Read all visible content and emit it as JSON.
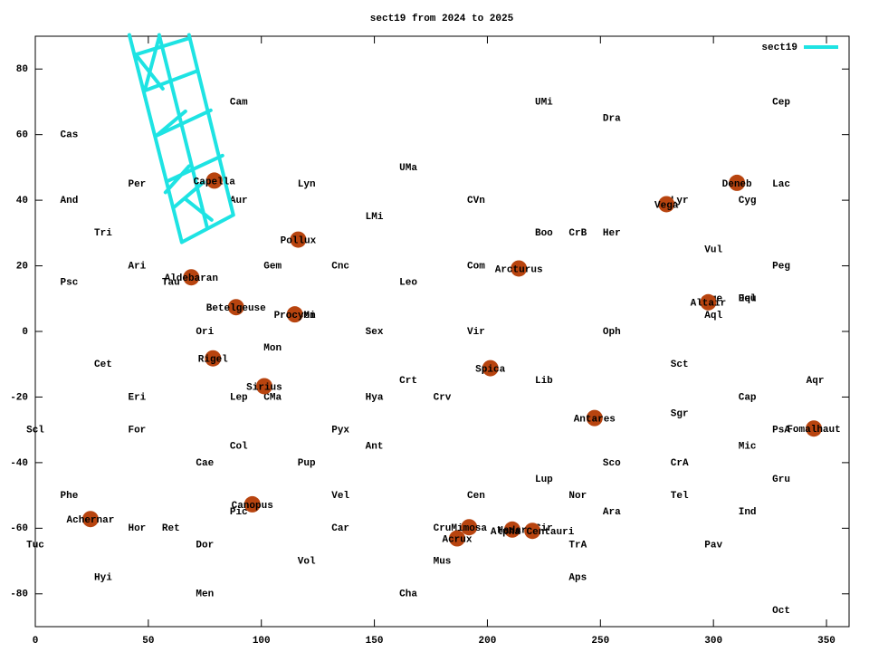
{
  "chart_data": {
    "type": "scatter",
    "title": "sect19 from 2024 to 2025",
    "xlim": [
      0,
      360
    ],
    "ylim": [
      -90,
      90
    ],
    "xticks": [
      0,
      50,
      100,
      150,
      200,
      250,
      300,
      350
    ],
    "yticks": [
      -80,
      -60,
      -40,
      -20,
      0,
      20,
      40,
      60,
      80
    ],
    "legend": "top-right",
    "series": [
      {
        "name": "sect19",
        "color": "#1ee3e3",
        "x": [
          41.6,
          64.8,
          null,
          54.8,
          76.0,
          null,
          68.0,
          87.6,
          null,
          44.4,
          67.6,
          null,
          48.4,
          71.6,
          null,
          53.6,
          77.6,
          null,
          58.8,
          82.8,
          null,
          64.8,
          87.6,
          null,
          44.4,
          56.4,
          null,
          54.8,
          48.4,
          null,
          53.6,
          66.4,
          null,
          57.6,
          68.0,
          null,
          61.6,
          74.4,
          null,
          66.0,
          78.0
        ],
        "y": [
          90.4,
          27.2,
          null,
          90.4,
          31.7,
          null,
          90.4,
          35.5,
          null,
          84.4,
          89.3,
          null,
          73.4,
          79.4,
          null,
          59.7,
          67.4,
          null,
          45.9,
          53.6,
          null,
          27.2,
          35.5,
          null,
          84.4,
          74.0,
          null,
          89.8,
          73.4,
          null,
          59.7,
          67.1,
          null,
          42.4,
          50.4,
          null,
          38.0,
          45.5,
          null,
          40.6,
          34.0
        ]
      }
    ],
    "stars": {
      "color": "#b8440f",
      "points": [
        {
          "name": "Capella",
          "x": 79.2,
          "y": 46.0
        },
        {
          "name": "Pollux",
          "x": 116.3,
          "y": 28.0
        },
        {
          "name": "Aldebaran",
          "x": 69.0,
          "y": 16.5
        },
        {
          "name": "Betelgeuse",
          "x": 88.8,
          "y": 7.4
        },
        {
          "name": "Procyon",
          "x": 114.8,
          "y": 5.2
        },
        {
          "name": "Rigel",
          "x": 78.6,
          "y": -8.2
        },
        {
          "name": "Sirius",
          "x": 101.3,
          "y": -16.7
        },
        {
          "name": "Canopus",
          "x": 96.0,
          "y": -52.7
        },
        {
          "name": "Achernar",
          "x": 24.4,
          "y": -57.2
        },
        {
          "name": "Arcturus",
          "x": 213.9,
          "y": 19.2
        },
        {
          "name": "Spica",
          "x": 201.3,
          "y": -11.2
        },
        {
          "name": "Antares",
          "x": 247.4,
          "y": -26.4
        },
        {
          "name": "Vega",
          "x": 279.2,
          "y": 38.8
        },
        {
          "name": "Deneb",
          "x": 310.4,
          "y": 45.3
        },
        {
          "name": "Altair",
          "x": 297.7,
          "y": 8.9
        },
        {
          "name": "Fomalhaut",
          "x": 344.4,
          "y": -29.6
        },
        {
          "name": "Mimosa",
          "x": 191.9,
          "y": -59.7
        },
        {
          "name": "Acrux",
          "x": 186.6,
          "y": -63.1
        },
        {
          "name": "Hadar",
          "x": 211.0,
          "y": -60.4
        },
        {
          "name": "Alpha Centauri",
          "x": 219.9,
          "y": -60.8
        }
      ]
    },
    "constellations": [
      {
        "name": "Cam",
        "x": 90,
        "y": 70
      },
      {
        "name": "Cas",
        "x": 15,
        "y": 60
      },
      {
        "name": "Per",
        "x": 45,
        "y": 45
      },
      {
        "name": "And",
        "x": 15,
        "y": 40
      },
      {
        "name": "Tri",
        "x": 30,
        "y": 30
      },
      {
        "name": "Ari",
        "x": 45,
        "y": 20
      },
      {
        "name": "Psc",
        "x": 15,
        "y": 15
      },
      {
        "name": "Tau",
        "x": 60,
        "y": 15
      },
      {
        "name": "Gem",
        "x": 105,
        "y": 20
      },
      {
        "name": "Cnc",
        "x": 135,
        "y": 20
      },
      {
        "name": "Lyn",
        "x": 120,
        "y": 45
      },
      {
        "name": "Aur",
        "x": 90,
        "y": 40
      },
      {
        "name": "LMi",
        "x": 150,
        "y": 35
      },
      {
        "name": "UMa",
        "x": 165,
        "y": 50
      },
      {
        "name": "Leo",
        "x": 165,
        "y": 15
      },
      {
        "name": "Ori",
        "x": 75,
        "y": 0
      },
      {
        "name": "Mon",
        "x": 105,
        "y": -5
      },
      {
        "name": "CMi",
        "x": 120,
        "y": 5
      },
      {
        "name": "Sex",
        "x": 150,
        "y": 0
      },
      {
        "name": "Cet",
        "x": 30,
        "y": -10
      },
      {
        "name": "Eri",
        "x": 45,
        "y": -20
      },
      {
        "name": "Lep",
        "x": 90,
        "y": -20
      },
      {
        "name": "CMa",
        "x": 105,
        "y": -20
      },
      {
        "name": "Hya",
        "x": 150,
        "y": -20
      },
      {
        "name": "Crt",
        "x": 165,
        "y": -15
      },
      {
        "name": "Crv",
        "x": 180,
        "y": -20
      },
      {
        "name": "Scl",
        "x": 0,
        "y": -30
      },
      {
        "name": "For",
        "x": 45,
        "y": -30
      },
      {
        "name": "Pyx",
        "x": 135,
        "y": -30
      },
      {
        "name": "Col",
        "x": 90,
        "y": -35
      },
      {
        "name": "Ant",
        "x": 150,
        "y": -35
      },
      {
        "name": "Cae",
        "x": 75,
        "y": -40
      },
      {
        "name": "Pup",
        "x": 120,
        "y": -40
      },
      {
        "name": "Phe",
        "x": 15,
        "y": -50
      },
      {
        "name": "Vel",
        "x": 135,
        "y": -50
      },
      {
        "name": "Pic",
        "x": 90,
        "y": -55
      },
      {
        "name": "Hor",
        "x": 45,
        "y": -60
      },
      {
        "name": "Ret",
        "x": 60,
        "y": -60
      },
      {
        "name": "Car",
        "x": 135,
        "y": -60
      },
      {
        "name": "Tuc",
        "x": 0,
        "y": -65
      },
      {
        "name": "Dor",
        "x": 75,
        "y": -65
      },
      {
        "name": "Vol",
        "x": 120,
        "y": -70
      },
      {
        "name": "Hyi",
        "x": 30,
        "y": -75
      },
      {
        "name": "Men",
        "x": 75,
        "y": -80
      },
      {
        "name": "Cha",
        "x": 165,
        "y": -80
      },
      {
        "name": "Mus",
        "x": 180,
        "y": -70
      },
      {
        "name": "Cru",
        "x": 180,
        "y": -60
      },
      {
        "name": "Cen",
        "x": 195,
        "y": -50
      },
      {
        "name": "UMi",
        "x": 225,
        "y": 70
      },
      {
        "name": "Dra",
        "x": 255,
        "y": 65
      },
      {
        "name": "Cep",
        "x": 330,
        "y": 70
      },
      {
        "name": "CVn",
        "x": 195,
        "y": 40
      },
      {
        "name": "Boo",
        "x": 225,
        "y": 30
      },
      {
        "name": "CrB",
        "x": 240,
        "y": 30
      },
      {
        "name": "Her",
        "x": 255,
        "y": 30
      },
      {
        "name": "Lyr",
        "x": 285,
        "y": 40
      },
      {
        "name": "Cyg",
        "x": 315,
        "y": 40
      },
      {
        "name": "Lac",
        "x": 330,
        "y": 45
      },
      {
        "name": "Vul",
        "x": 300,
        "y": 25
      },
      {
        "name": "Peg",
        "x": 330,
        "y": 20
      },
      {
        "name": "Com",
        "x": 195,
        "y": 20
      },
      {
        "name": "Vir",
        "x": 195,
        "y": 0
      },
      {
        "name": "Oph",
        "x": 255,
        "y": 0
      },
      {
        "name": "Sge",
        "x": 300,
        "y": 10
      },
      {
        "name": "Aql",
        "x": 300,
        "y": 5
      },
      {
        "name": "Del",
        "x": 315,
        "y": 10
      },
      {
        "name": "Equ",
        "x": 315,
        "y": 10
      },
      {
        "name": "Sct",
        "x": 285,
        "y": -10
      },
      {
        "name": "Lib",
        "x": 225,
        "y": -15
      },
      {
        "name": "Aqr",
        "x": 345,
        "y": -15
      },
      {
        "name": "Cap",
        "x": 315,
        "y": -20
      },
      {
        "name": "Sgr",
        "x": 285,
        "y": -25
      },
      {
        "name": "PsA",
        "x": 330,
        "y": -30
      },
      {
        "name": "Mic",
        "x": 315,
        "y": -35
      },
      {
        "name": "Sco",
        "x": 255,
        "y": -40
      },
      {
        "name": "CrA",
        "x": 285,
        "y": -40
      },
      {
        "name": "Lup",
        "x": 225,
        "y": -45
      },
      {
        "name": "Nor",
        "x": 240,
        "y": -50
      },
      {
        "name": "Tel",
        "x": 285,
        "y": -50
      },
      {
        "name": "Gru",
        "x": 330,
        "y": -45
      },
      {
        "name": "Ara",
        "x": 255,
        "y": -55
      },
      {
        "name": "Ind",
        "x": 315,
        "y": -55
      },
      {
        "name": "Cir",
        "x": 225,
        "y": -60
      },
      {
        "name": "TrA",
        "x": 240,
        "y": -65
      },
      {
        "name": "Pav",
        "x": 300,
        "y": -65
      },
      {
        "name": "Aps",
        "x": 240,
        "y": -75
      },
      {
        "name": "Oct",
        "x": 330,
        "y": -85
      }
    ]
  }
}
